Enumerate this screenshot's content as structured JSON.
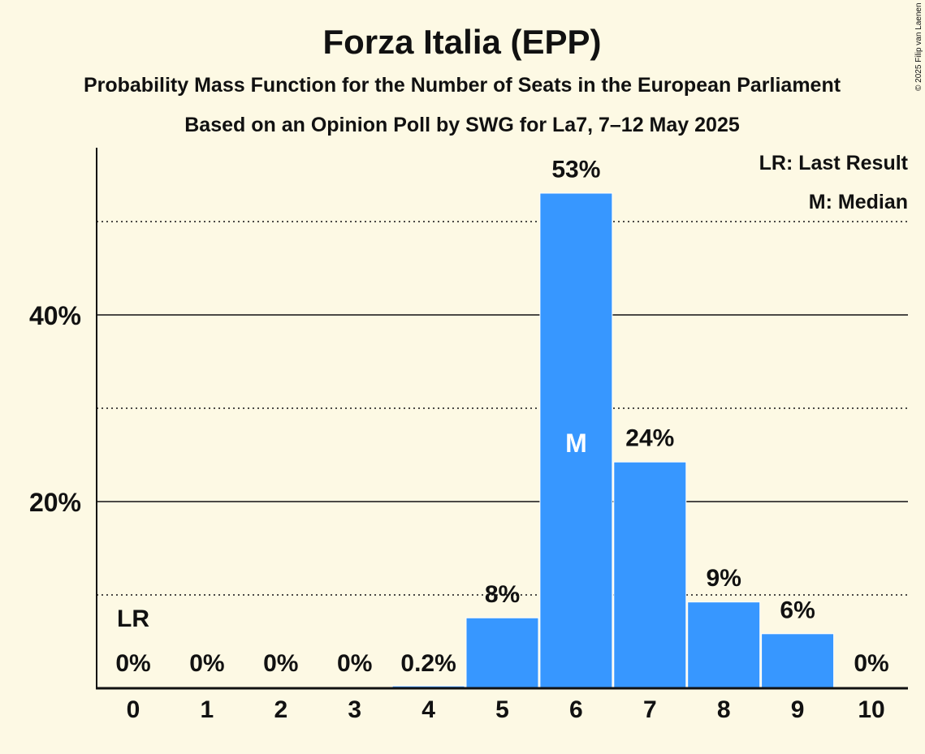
{
  "chart_data": {
    "type": "bar",
    "title": "Forza Italia (EPP)",
    "subtitle": "Probability Mass Function for the Number of Seats in the European Parliament",
    "subtitle2": "Based on an Opinion Poll by SWG for La7, 7–12 May 2025",
    "copyright": "© 2025 Filip van Laenen",
    "categories": [
      "0",
      "1",
      "2",
      "3",
      "4",
      "5",
      "6",
      "7",
      "8",
      "9",
      "10"
    ],
    "values": [
      0,
      0,
      0,
      0,
      0.2,
      7.5,
      53.0,
      24.2,
      9.2,
      5.8,
      0
    ],
    "data_labels": [
      "0%",
      "0%",
      "0%",
      "0%",
      "0.2%",
      "8%",
      "53%",
      "24%",
      "9%",
      "6%",
      "0%"
    ],
    "ylim": [
      0,
      57
    ],
    "yticks": [
      {
        "value": 20,
        "label": "20%"
      },
      {
        "value": 40,
        "label": "40%"
      }
    ],
    "minor_gridlines": [
      10,
      30,
      50
    ],
    "last_result": {
      "category": "0",
      "label": "LR"
    },
    "median": {
      "category": "6",
      "label": "M"
    },
    "legend": [
      "LR: Last Result",
      "M: Median"
    ],
    "legend_position": "top-right",
    "bar_color": "#3797FF"
  }
}
